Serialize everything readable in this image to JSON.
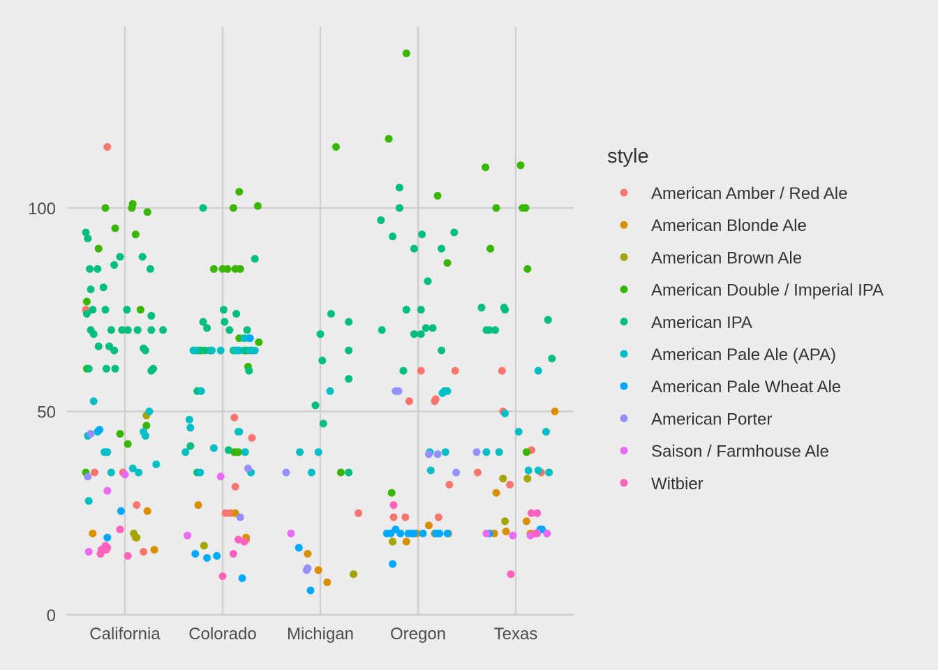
{
  "chart_data": {
    "type": "scatter",
    "title": "",
    "xlabel": "",
    "ylabel": "",
    "categories": [
      "California",
      "Colorado",
      "Michigan",
      "Oregon",
      "Texas"
    ],
    "ylim": [
      0,
      137
    ],
    "yticks": [
      0,
      50,
      100
    ],
    "grid": true,
    "legend": {
      "title": "style",
      "position": "right"
    },
    "series": [
      {
        "name": "American Amber / Red Ale",
        "color": "#F8766D",
        "points": [
          [
            -0.4,
            75
          ],
          [
            -0.31,
            35
          ],
          [
            -0.18,
            115
          ],
          [
            -0.02,
            35
          ],
          [
            0.12,
            27
          ],
          [
            0.19,
            15.5
          ],
          [
            0.12,
            48.5
          ],
          [
            0.3,
            43.5
          ],
          [
            0.24,
            18.5
          ],
          [
            0.13,
            31.5
          ],
          [
            0.08,
            25
          ],
          [
            0.03,
            25
          ],
          [
            0.39,
            25
          ],
          [
            0.38,
            60
          ],
          [
            -0.25,
            24
          ],
          [
            0.03,
            60
          ],
          [
            0.17,
            52.5
          ],
          [
            0.21,
            24
          ],
          [
            0.18,
            53
          ],
          [
            0.32,
            32
          ],
          [
            -0.13,
            24
          ],
          [
            -0.09,
            52.5
          ],
          [
            -0.39,
            35
          ],
          [
            -0.14,
            60
          ],
          [
            -0.13,
            50
          ],
          [
            -0.06,
            32
          ],
          [
            0.16,
            40.5
          ],
          [
            0.26,
            35
          ]
        ]
      },
      {
        "name": "American Blonde Ale",
        "color": "#D89000",
        "points": [
          [
            -0.33,
            20
          ],
          [
            0.11,
            19
          ],
          [
            0.23,
            25.5
          ],
          [
            0.3,
            16
          ],
          [
            -0.25,
            27
          ],
          [
            0.13,
            25
          ],
          [
            0.24,
            19
          ],
          [
            -0.13,
            15
          ],
          [
            -0.02,
            11
          ],
          [
            0.07,
            8
          ],
          [
            -0.12,
            18
          ],
          [
            -0.01,
            20
          ],
          [
            0.17,
            20
          ],
          [
            0.31,
            20
          ],
          [
            0.11,
            22
          ],
          [
            -0.1,
            20.5
          ],
          [
            -0.2,
            30
          ],
          [
            -0.22,
            20
          ],
          [
            0.11,
            23
          ],
          [
            0.15,
            20
          ],
          [
            0.32,
            20
          ],
          [
            0.4,
            50
          ]
        ]
      },
      {
        "name": "American Brown Ale",
        "color": "#A3A500",
        "points": [
          [
            0.09,
            20
          ],
          [
            0.12,
            19
          ],
          [
            0.22,
            49
          ],
          [
            -0.19,
            17
          ],
          [
            0.34,
            10
          ],
          [
            -0.26,
            18
          ],
          [
            -0.11,
            23
          ],
          [
            -0.13,
            33.5
          ],
          [
            0.12,
            33.5
          ]
        ]
      },
      {
        "name": "American Double / Imperial IPA",
        "color": "#39B600",
        "points": [
          [
            -0.39,
            77
          ],
          [
            -0.2,
            100
          ],
          [
            -0.1,
            95
          ],
          [
            0.07,
            100
          ],
          [
            0.08,
            101
          ],
          [
            0.11,
            93.5
          ],
          [
            0.16,
            75
          ],
          [
            0.23,
            99
          ],
          [
            -0.05,
            44.5
          ],
          [
            0.22,
            46.5
          ],
          [
            0.03,
            42
          ],
          [
            -0.39,
            60.5
          ],
          [
            -0.4,
            35
          ],
          [
            -0.27,
            90
          ],
          [
            -0.09,
            85
          ],
          [
            0.0,
            85
          ],
          [
            0.05,
            85
          ],
          [
            0.13,
            85
          ],
          [
            0.11,
            100
          ],
          [
            0.17,
            104
          ],
          [
            0.36,
            100.5
          ],
          [
            -0.22,
            65
          ],
          [
            0.26,
            61
          ],
          [
            0.18,
            85
          ],
          [
            0.12,
            40
          ],
          [
            0.17,
            68
          ],
          [
            0.16,
            40
          ],
          [
            0.24,
            65
          ],
          [
            0.37,
            67
          ],
          [
            0.16,
            115
          ],
          [
            0.21,
            35
          ],
          [
            -0.27,
            30
          ],
          [
            -0.12,
            138
          ],
          [
            0.2,
            103
          ],
          [
            0.3,
            86.5
          ],
          [
            -0.3,
            117
          ],
          [
            -0.31,
            110
          ],
          [
            -0.26,
            90
          ],
          [
            -0.2,
            100
          ],
          [
            0.05,
            110.5
          ],
          [
            0.07,
            100
          ],
          [
            0.12,
            85
          ],
          [
            0.1,
            100
          ],
          [
            0.11,
            40
          ]
        ]
      },
      {
        "name": "American IPA",
        "color": "#00BF7D",
        "points": [
          [
            -0.4,
            94
          ],
          [
            -0.38,
            92.5
          ],
          [
            -0.36,
            85
          ],
          [
            -0.35,
            80
          ],
          [
            -0.33,
            75
          ],
          [
            -0.28,
            85
          ],
          [
            -0.22,
            80.5
          ],
          [
            -0.2,
            75
          ],
          [
            -0.14,
            70
          ],
          [
            -0.11,
            86
          ],
          [
            -0.05,
            88
          ],
          [
            -0.03,
            70
          ],
          [
            0.02,
            75
          ],
          [
            0.03,
            70
          ],
          [
            0.13,
            70
          ],
          [
            0.18,
            88
          ],
          [
            0.26,
            85
          ],
          [
            0.27,
            73.5
          ],
          [
            0.27,
            70
          ],
          [
            0.21,
            65
          ],
          [
            0.29,
            60.5
          ],
          [
            0.19,
            65.5
          ],
          [
            0.39,
            70
          ],
          [
            -0.35,
            70
          ],
          [
            -0.37,
            60.5
          ],
          [
            -0.27,
            66
          ],
          [
            -0.19,
            60.5
          ],
          [
            -0.16,
            66
          ],
          [
            -0.1,
            60.5
          ],
          [
            -0.11,
            65
          ],
          [
            0.27,
            60
          ],
          [
            -0.39,
            74
          ],
          [
            -0.32,
            69
          ],
          [
            -0.2,
            100
          ],
          [
            -0.2,
            72
          ],
          [
            -0.16,
            70.5
          ],
          [
            -0.18,
            65
          ],
          [
            -0.13,
            65
          ],
          [
            0.01,
            75
          ],
          [
            0.02,
            72
          ],
          [
            0.07,
            70
          ],
          [
            0.14,
            74
          ],
          [
            0.11,
            65
          ],
          [
            0.15,
            65
          ],
          [
            0.25,
            70
          ],
          [
            0.22,
            65
          ],
          [
            0.33,
            87.5
          ],
          [
            0.27,
            60
          ],
          [
            0.06,
            40.5
          ],
          [
            0.16,
            45
          ],
          [
            -0.26,
            35
          ],
          [
            -0.33,
            41.5
          ],
          [
            -0.25,
            65
          ],
          [
            -0.26,
            55
          ],
          [
            0.0,
            69
          ],
          [
            0.02,
            62.5
          ],
          [
            0.11,
            74
          ],
          [
            -0.05,
            51.5
          ],
          [
            0.03,
            47
          ],
          [
            0.29,
            35
          ],
          [
            0.29,
            72
          ],
          [
            0.29,
            65
          ],
          [
            0.29,
            58
          ],
          [
            -0.38,
            97
          ],
          [
            -0.37,
            70
          ],
          [
            -0.26,
            93
          ],
          [
            -0.19,
            105
          ],
          [
            -0.19,
            100
          ],
          [
            -0.15,
            60
          ],
          [
            -0.04,
            90
          ],
          [
            -0.12,
            75
          ],
          [
            -0.04,
            69
          ],
          [
            0.03,
            75
          ],
          [
            0.03,
            69
          ],
          [
            0.04,
            93.5
          ],
          [
            0.1,
            82
          ],
          [
            0.08,
            70.5
          ],
          [
            0.15,
            70.5
          ],
          [
            0.24,
            90
          ],
          [
            0.24,
            65
          ],
          [
            0.37,
            94
          ],
          [
            -0.3,
            70
          ],
          [
            -0.35,
            75.5
          ],
          [
            -0.21,
            70
          ],
          [
            -0.12,
            75.5
          ],
          [
            -0.27,
            70
          ],
          [
            -0.11,
            75
          ],
          [
            0.33,
            72.5
          ],
          [
            0.37,
            63
          ]
        ]
      },
      {
        "name": "American Pale Ale (APA)",
        "color": "#00BFC4",
        "points": [
          [
            -0.38,
            44
          ],
          [
            -0.37,
            28
          ],
          [
            -0.32,
            52.5
          ],
          [
            -0.28,
            45
          ],
          [
            -0.18,
            40
          ],
          [
            -0.14,
            35
          ],
          [
            -0.21,
            40
          ],
          [
            0.08,
            36
          ],
          [
            0.14,
            35
          ],
          [
            0.25,
            50
          ],
          [
            0.19,
            45
          ],
          [
            0.32,
            37
          ],
          [
            0.21,
            44
          ],
          [
            -0.38,
            40
          ],
          [
            -0.34,
            48
          ],
          [
            -0.33,
            46
          ],
          [
            -0.3,
            65
          ],
          [
            -0.28,
            65
          ],
          [
            -0.11,
            65
          ],
          [
            -0.02,
            65
          ],
          [
            0.13,
            65
          ],
          [
            0.17,
            65
          ],
          [
            0.28,
            65
          ],
          [
            0.3,
            65
          ],
          [
            0.33,
            65
          ],
          [
            0.22,
            68
          ],
          [
            0.27,
            68
          ],
          [
            -0.23,
            35
          ],
          [
            -0.09,
            41
          ],
          [
            0.17,
            45
          ],
          [
            0.23,
            40
          ],
          [
            0.29,
            35
          ],
          [
            -0.22,
            55
          ],
          [
            -0.21,
            40
          ],
          [
            -0.09,
            35
          ],
          [
            -0.02,
            40
          ],
          [
            0.1,
            55
          ],
          [
            0.13,
            35.5
          ],
          [
            0.2,
            20
          ],
          [
            0.25,
            54.5
          ],
          [
            0.3,
            55
          ],
          [
            0.28,
            40
          ],
          [
            0.12,
            40
          ],
          [
            0.27,
            55
          ],
          [
            -0.3,
            40
          ],
          [
            -0.11,
            49.5
          ],
          [
            -0.17,
            40
          ],
          [
            0.03,
            45
          ],
          [
            0.23,
            60
          ],
          [
            0.13,
            35.5
          ],
          [
            0.23,
            35.5
          ],
          [
            0.31,
            45
          ],
          [
            0.34,
            35
          ]
        ]
      },
      {
        "name": "American Pale Wheat Ale",
        "color": "#00A9FF",
        "points": [
          [
            -0.26,
            45.5
          ],
          [
            -0.18,
            19
          ],
          [
            -0.04,
            25.5
          ],
          [
            -0.28,
            15
          ],
          [
            -0.16,
            14
          ],
          [
            -0.06,
            14.5
          ],
          [
            0.2,
            9
          ],
          [
            0.28,
            68
          ],
          [
            -0.22,
            16.5
          ],
          [
            -0.1,
            6
          ],
          [
            -0.32,
            20
          ],
          [
            -0.28,
            20
          ],
          [
            -0.23,
            21
          ],
          [
            -0.26,
            12.5
          ],
          [
            -0.18,
            20
          ],
          [
            -0.06,
            20
          ],
          [
            -0.04,
            20
          ],
          [
            0.18,
            20
          ],
          [
            0.22,
            20
          ],
          [
            0.3,
            20
          ],
          [
            0.05,
            20
          ],
          [
            -0.27,
            20
          ],
          [
            0.27,
            21
          ],
          [
            -0.1,
            20
          ],
          [
            0.25,
            21
          ]
        ]
      },
      {
        "name": "American Porter",
        "color": "#9590FF",
        "points": [
          [
            -0.38,
            34
          ],
          [
            -0.35,
            44.5
          ],
          [
            0.18,
            24
          ],
          [
            0.26,
            36
          ],
          [
            -0.35,
            35
          ],
          [
            -0.14,
            11
          ],
          [
            -0.13,
            11.5
          ],
          [
            -0.23,
            55
          ],
          [
            -0.2,
            55
          ],
          [
            0.11,
            39.5
          ],
          [
            0.39,
            35
          ],
          [
            -0.4,
            40
          ],
          [
            0.2,
            39.5
          ]
        ]
      },
      {
        "name": "Saison / Farmhouse Ale",
        "color": "#E76BF3",
        "points": [
          [
            -0.18,
            30.5
          ],
          [
            0.0,
            34.5
          ],
          [
            -0.37,
            15.5
          ],
          [
            -0.36,
            19.5
          ],
          [
            -0.02,
            34
          ],
          [
            -0.3,
            20
          ],
          [
            -0.3,
            20
          ],
          [
            -0.03,
            19.5
          ],
          [
            0.15,
            19.5
          ],
          [
            0.22,
            20
          ],
          [
            0.32,
            20
          ]
        ]
      },
      {
        "name": "Witbier",
        "color": "#FF62BC",
        "points": [
          [
            -0.25,
            15
          ],
          [
            -0.24,
            16
          ],
          [
            -0.19,
            16
          ],
          [
            -0.18,
            16.5
          ],
          [
            -0.05,
            21
          ],
          [
            0.03,
            14.5
          ],
          [
            -0.2,
            17
          ],
          [
            0.11,
            15
          ],
          [
            0.0,
            9.5
          ],
          [
            0.16,
            18.5
          ],
          [
            0.22,
            18
          ],
          [
            -0.25,
            27
          ],
          [
            -0.05,
            10
          ],
          [
            0.16,
            25
          ],
          [
            0.2,
            20
          ],
          [
            0.22,
            25
          ]
        ]
      }
    ]
  }
}
